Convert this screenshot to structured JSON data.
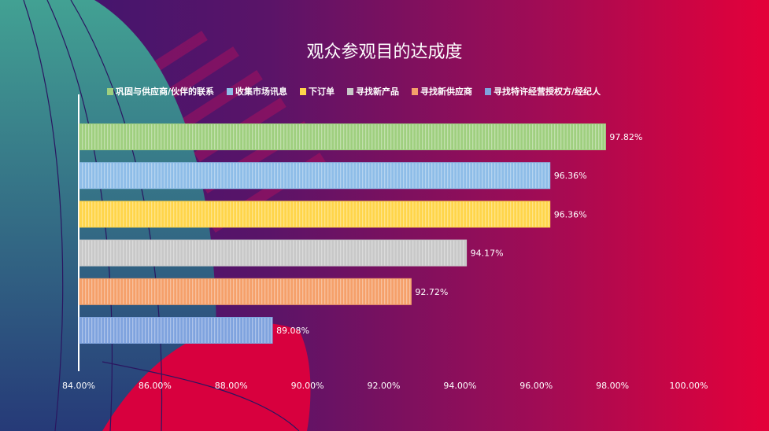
{
  "chart_data": {
    "type": "bar",
    "orientation": "horizontal",
    "title": "观众参观目的达成度",
    "categories": [
      "巩固与供应商/伙伴的联系",
      "收集市场讯息",
      "下订单",
      "寻找新产品",
      "寻找新供应商",
      "寻找特许经营授权方/经纪人"
    ],
    "values": [
      97.82,
      96.36,
      96.36,
      94.17,
      92.72,
      89.08
    ],
    "value_labels": [
      "97.82%",
      "96.36%",
      "96.36%",
      "94.17%",
      "92.72%",
      "89.08%"
    ],
    "colors": [
      "#9fcf7f",
      "#8ebde8",
      "#ffd54a",
      "#c8c8c8",
      "#f5a06a",
      "#7fa3de"
    ],
    "xlim": [
      84,
      100
    ],
    "xticks": [
      "84.00%",
      "86.00%",
      "88.00%",
      "90.00%",
      "92.00%",
      "94.00%",
      "96.00%",
      "98.00%",
      "100.00%"
    ],
    "legend_position": "top",
    "grid": false
  }
}
